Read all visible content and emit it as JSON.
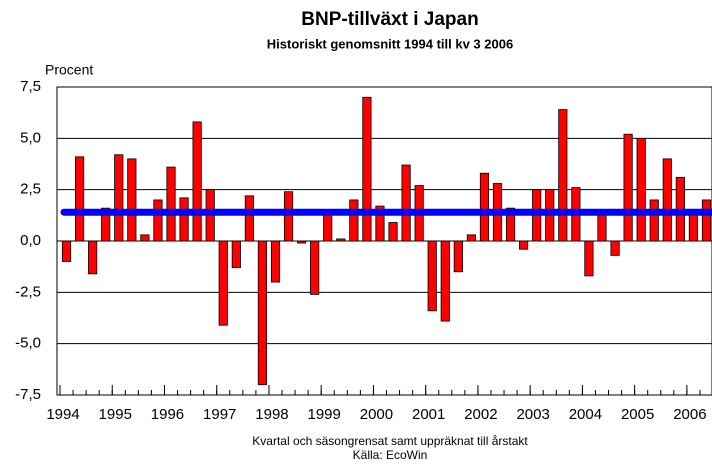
{
  "chart_data": {
    "type": "bar",
    "title": "BNP-tillväxt i Japan",
    "subtitle": "Historiskt genomsnitt 1994 till kv 3 2006",
    "ylabel": "Procent",
    "notes": [
      "Kvartal och säsongrensat samt uppräknat till årstakt",
      "Källa: EcoWin"
    ],
    "categories": [
      null,
      null,
      null,
      null,
      null,
      null,
      null,
      null,
      null,
      null,
      null,
      null,
      null,
      null,
      null,
      null,
      null,
      null,
      null,
      null,
      null,
      null,
      null,
      null,
      null,
      null,
      null,
      null,
      null,
      null,
      null,
      null,
      null,
      null,
      null,
      null,
      null,
      null,
      null,
      null,
      null,
      null,
      null,
      null,
      null,
      null,
      null,
      null,
      null,
      null
    ],
    "values": [
      -1.0,
      4.1,
      -1.6,
      1.6,
      4.2,
      4.0,
      0.3,
      2.0,
      3.6,
      2.1,
      5.8,
      2.5,
      -4.1,
      -1.3,
      2.2,
      -7.0,
      -2.0,
      2.4,
      -0.1,
      -2.6,
      1.4,
      0.1,
      2.0,
      7.0,
      1.7,
      0.9,
      3.7,
      2.7,
      -3.4,
      -3.9,
      -1.5,
      0.3,
      3.3,
      2.8,
      1.6,
      -0.4,
      2.5,
      2.5,
      6.4,
      2.6,
      -1.7,
      1.4,
      -0.7,
      5.2,
      5.0,
      2.0,
      4.0,
      3.1,
      1.4,
      2.0
    ],
    "color": "#ff0000",
    "reference_line": {
      "value": 1.4,
      "color": "#0000ff"
    },
    "xlim": [
      1994,
      2006.5
    ],
    "xticks": [
      1994,
      1995,
      1996,
      1997,
      1998,
      1999,
      2000,
      2001,
      2002,
      2003,
      2004,
      2005,
      2006
    ],
    "ylim": [
      -7.5,
      7.5
    ],
    "yticks": [
      {
        "value": -7.5,
        "label": "-7,5"
      },
      {
        "value": -5,
        "label": "-5,0"
      },
      {
        "value": -2.5,
        "label": "-2,5"
      },
      {
        "value": 0,
        "label": "0,0"
      },
      {
        "value": 2.5,
        "label": "2,5"
      },
      {
        "value": 5,
        "label": "5,0"
      },
      {
        "value": 7.5,
        "label": "7,5"
      }
    ],
    "grid": true
  }
}
